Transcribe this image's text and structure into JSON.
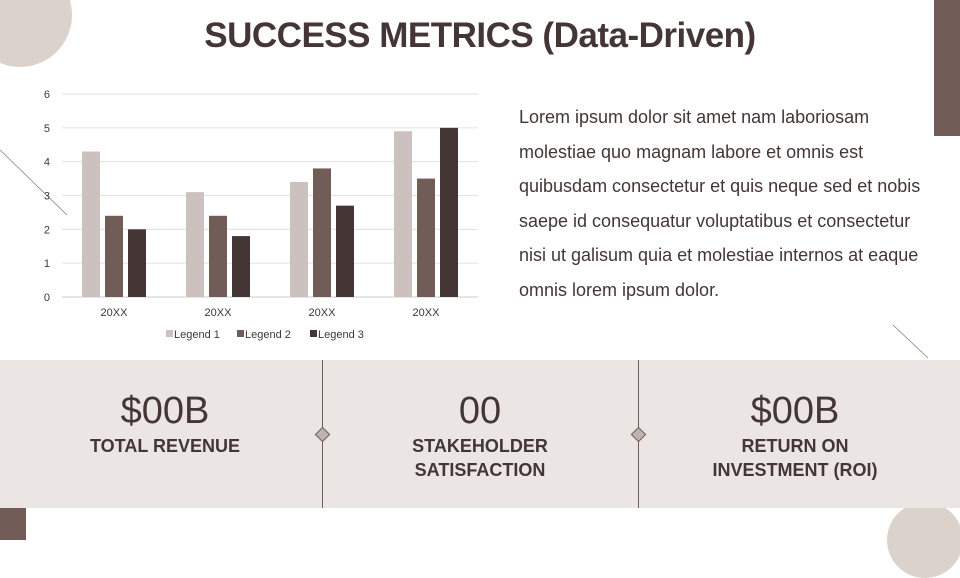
{
  "title": "SUCCESS METRICS (Data-Driven)",
  "body_text": "Lorem ipsum dolor sit amet nam laboriosam molestiae quo magnam labore et omnis est quibusdam consectetur et quis neque sed et nobis saepe id consequatur voluptatibus et consectetur nisi ut galisum quia et molestiae internos at eaque omnis lorem ipsum dolor.",
  "metrics": [
    {
      "value": "$00B",
      "label": "TOTAL REVENUE"
    },
    {
      "value": "00",
      "label": "STAKEHOLDER SATISFACTION"
    },
    {
      "value": "$00B",
      "label": "RETURN ON INVESTMENT (ROI)"
    }
  ],
  "colors": {
    "accent": "#725c58",
    "dark": "#433634",
    "light": "#cdc1c0",
    "band": "#ebe5e3",
    "decor": "#dcd2cc"
  },
  "chart_data": {
    "type": "bar",
    "categories": [
      "20XX",
      "20XX",
      "20XX",
      "20XX"
    ],
    "series": [
      {
        "name": "Legend 1",
        "values": [
          4.3,
          3.1,
          3.4,
          4.9
        ],
        "color": "#cdc1c0"
      },
      {
        "name": "Legend 2",
        "values": [
          2.4,
          2.4,
          3.8,
          3.5
        ],
        "color": "#725c58"
      },
      {
        "name": "Legend 3",
        "values": [
          2.0,
          1.8,
          2.7,
          5.0
        ],
        "color": "#433634"
      }
    ],
    "yticks": [
      "0",
      "1",
      "2",
      "3",
      "4",
      "5",
      "6"
    ],
    "ylim": [
      0,
      6
    ],
    "grid": true,
    "legend": "bottom"
  }
}
